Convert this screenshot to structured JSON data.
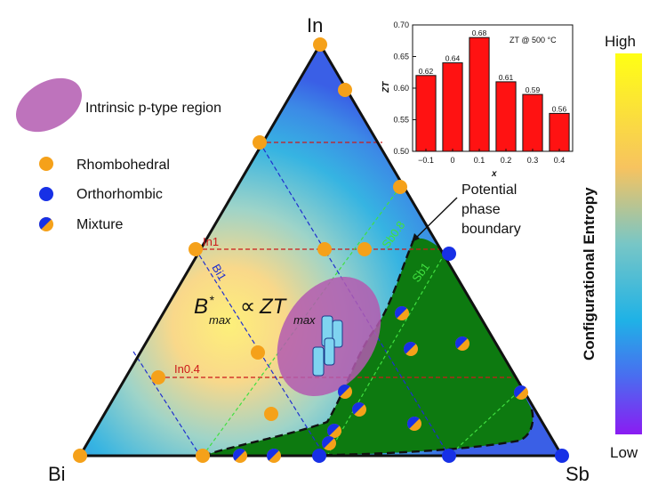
{
  "vertices": {
    "top": "In",
    "left": "Bi",
    "right": "Sb"
  },
  "legend": {
    "region": "Intrinsic p-type region",
    "rhombohedral": "Rhombohedral",
    "orthorhombic": "Orthorhombic",
    "mixture": "Mixture"
  },
  "lines": {
    "in1": "In1",
    "in04": "In0.4",
    "bi1": "Bi1",
    "sb08": "Sb0.8",
    "sb1": "Sb1"
  },
  "formula": {
    "b": "B",
    "star": "*",
    "sub1": "max",
    "prop": "∝",
    "zt": "ZT",
    "sub2": "max"
  },
  "annotation": {
    "line1": "Potential",
    "line2": "phase",
    "line3": "boundary"
  },
  "colorbar": {
    "title": "Configurational Entropy",
    "high": "High",
    "low": "Low",
    "colors": [
      "#ffff14",
      "#f7c35f",
      "#78c6c6",
      "#1fb2e6",
      "#4a6cf0",
      "#8a1cf2"
    ]
  },
  "colors": {
    "rhombohedral": "#f5a11a",
    "orthorhombic": "#1730e6",
    "phase_region": "#0d7a10",
    "ellipse": "#b35ab0",
    "bar": "#ff1212",
    "in_line": "#cc1a1a",
    "bi_line": "#1f2fcf",
    "sb_line": "#40e040"
  },
  "chart_data": {
    "type": "bar",
    "title": "ZT @ 500 °C",
    "xlabel": "x",
    "ylabel": "ZT",
    "categories": [
      "−0.1",
      "0",
      "0.1",
      "0.2",
      "0.3",
      "0.4"
    ],
    "values": [
      0.62,
      0.64,
      0.68,
      0.61,
      0.59,
      0.56
    ],
    "value_labels": [
      "0.62",
      "0.64",
      "0.68",
      "0.61",
      "0.59",
      "0.56"
    ],
    "ylim": [
      0.5,
      0.7
    ],
    "yticks": [
      "0.50",
      "0.55",
      "0.60",
      "0.65",
      "0.70"
    ]
  }
}
